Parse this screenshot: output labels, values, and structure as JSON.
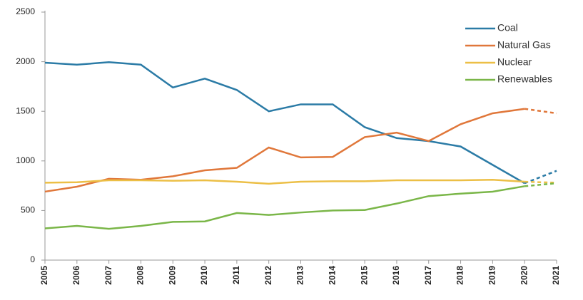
{
  "chart_data": {
    "type": "line",
    "x": [
      2005,
      2006,
      2007,
      2008,
      2009,
      2010,
      2011,
      2012,
      2013,
      2014,
      2015,
      2016,
      2017,
      2018,
      2019,
      2020,
      2021
    ],
    "series": [
      {
        "name": "Coal",
        "color": "#2b7ba6",
        "values": [
          1990,
          1970,
          1995,
          1970,
          1740,
          1830,
          1715,
          1500,
          1570,
          1570,
          1340,
          1230,
          1200,
          1145,
          960,
          775,
          900
        ]
      },
      {
        "name": "Natural Gas",
        "color": "#e0773a",
        "values": [
          690,
          740,
          820,
          810,
          845,
          905,
          930,
          1135,
          1035,
          1040,
          1240,
          1285,
          1200,
          1370,
          1480,
          1525,
          1480
        ]
      },
      {
        "name": "Nuclear",
        "color": "#ecbf46",
        "values": [
          780,
          785,
          805,
          805,
          800,
          805,
          790,
          770,
          790,
          795,
          795,
          805,
          805,
          805,
          810,
          790,
          780
        ]
      },
      {
        "name": "Renewables",
        "color": "#7ab648",
        "values": [
          320,
          345,
          315,
          345,
          385,
          390,
          475,
          455,
          480,
          500,
          505,
          570,
          645,
          670,
          690,
          745,
          775
        ]
      }
    ],
    "xlim": [
      2005,
      2021
    ],
    "xticks": [
      2005,
      2006,
      2007,
      2008,
      2009,
      2010,
      2011,
      2012,
      2013,
      2014,
      2015,
      2016,
      2017,
      2018,
      2019,
      2020,
      2021
    ],
    "ylim": [
      0,
      2500
    ],
    "yticks": [
      0,
      500,
      1000,
      1500,
      2000,
      2500
    ],
    "dashed_from_x": 2020,
    "grid": false,
    "legend": "top-right"
  }
}
